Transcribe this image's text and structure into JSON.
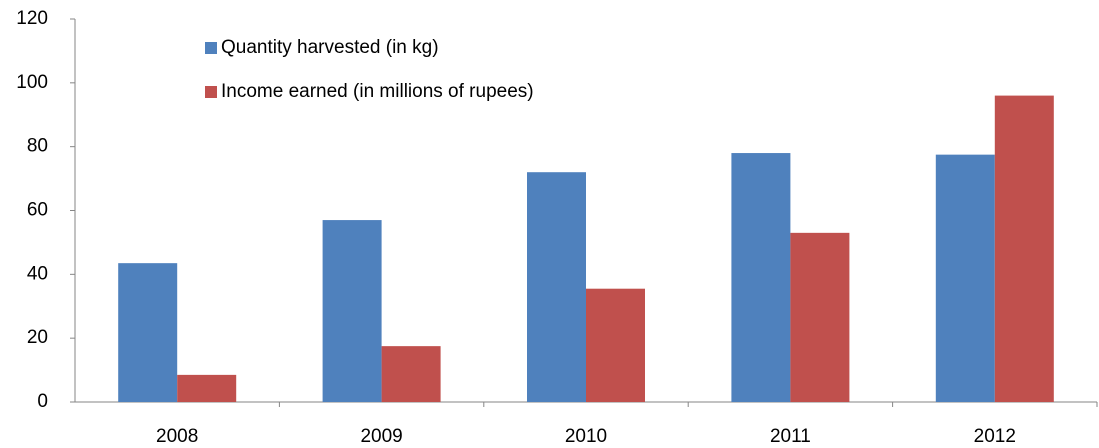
{
  "chart_data": {
    "type": "bar",
    "categories": [
      "2008",
      "2009",
      "2010",
      "2011",
      "2012"
    ],
    "series": [
      {
        "name": "Quantity harvested (in kg)",
        "color": "#4f81bd",
        "values": [
          43.5,
          57,
          72,
          78,
          77.5
        ]
      },
      {
        "name": "Income earned (in millions of rupees)",
        "color": "#c0504d",
        "values": [
          8.5,
          17.5,
          35.5,
          53,
          96
        ]
      }
    ],
    "ylim": [
      0,
      120
    ],
    "yticks": [
      0,
      20,
      40,
      60,
      80,
      100,
      120
    ],
    "grid": false,
    "legend": "top-left"
  }
}
